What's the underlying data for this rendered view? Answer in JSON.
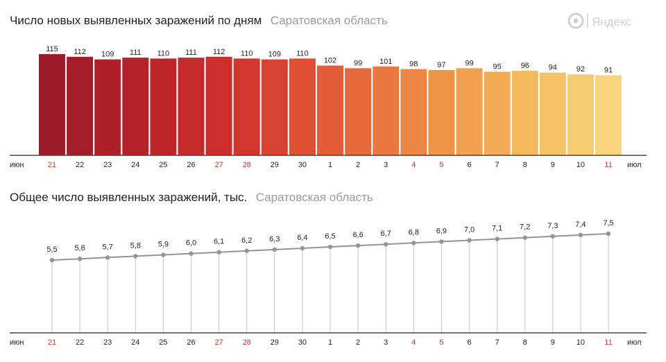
{
  "logo": {
    "text": "Яндекс",
    "icon": "yandex-logo-icon"
  },
  "colors": {
    "axis": "#444444",
    "weekend_tick": "#c0392b",
    "weekday_tick": "#222222",
    "line": "#8f94a3",
    "dot": "#8f94a3",
    "drop_line": "#cfcfcf",
    "bar_gradient": [
      "#9e1b2a",
      "#b8222a",
      "#d1322d",
      "#e35b37",
      "#ee8a45",
      "#f4b55a",
      "#f8d57d"
    ]
  },
  "chart_data": [
    {
      "type": "bar",
      "title": "Число новых выявленных заражений по дням",
      "subtitle": "Саратовская область",
      "categories": [
        "21",
        "22",
        "23",
        "24",
        "25",
        "26",
        "27",
        "28",
        "29",
        "30",
        "1",
        "2",
        "3",
        "4",
        "5",
        "6",
        "7",
        "8",
        "9",
        "10",
        "11"
      ],
      "weekend_categories": [
        "21",
        "27",
        "28",
        "4",
        "5",
        "11"
      ],
      "month_labels": {
        "start": "июн",
        "end": "июл"
      },
      "values": [
        115,
        112,
        109,
        111,
        110,
        111,
        112,
        110,
        109,
        110,
        102,
        99,
        101,
        98,
        97,
        99,
        95,
        96,
        94,
        92,
        91
      ],
      "ylim": [
        0,
        130
      ],
      "grid": false,
      "legend": "none"
    },
    {
      "type": "line",
      "title": "Общее число выявленных заражений, тыс.",
      "subtitle": "Саратовская область",
      "categories": [
        "21",
        "22",
        "23",
        "24",
        "25",
        "26",
        "27",
        "28",
        "29",
        "30",
        "1",
        "2",
        "3",
        "4",
        "5",
        "6",
        "7",
        "8",
        "9",
        "10",
        "11"
      ],
      "weekend_categories": [
        "21",
        "27",
        "28",
        "4",
        "5",
        "11"
      ],
      "month_labels": {
        "start": "июн",
        "end": "июл"
      },
      "values": [
        5.5,
        5.6,
        5.7,
        5.8,
        5.9,
        6.0,
        6.1,
        6.2,
        6.3,
        6.4,
        6.5,
        6.6,
        6.7,
        6.8,
        6.9,
        7.0,
        7.1,
        7.2,
        7.3,
        7.4,
        7.5
      ],
      "value_labels": [
        "5,5",
        "5,6",
        "5,7",
        "5,8",
        "5,9",
        "6,0",
        "6,1",
        "6,2",
        "6,3",
        "6,4",
        "6,5",
        "6,6",
        "6,7",
        "6,8",
        "6,9",
        "7,0",
        "7,1",
        "7,2",
        "7,3",
        "7,4",
        "7,5"
      ],
      "ylim": [
        0,
        8.6
      ],
      "grid": false,
      "legend": "none"
    }
  ]
}
